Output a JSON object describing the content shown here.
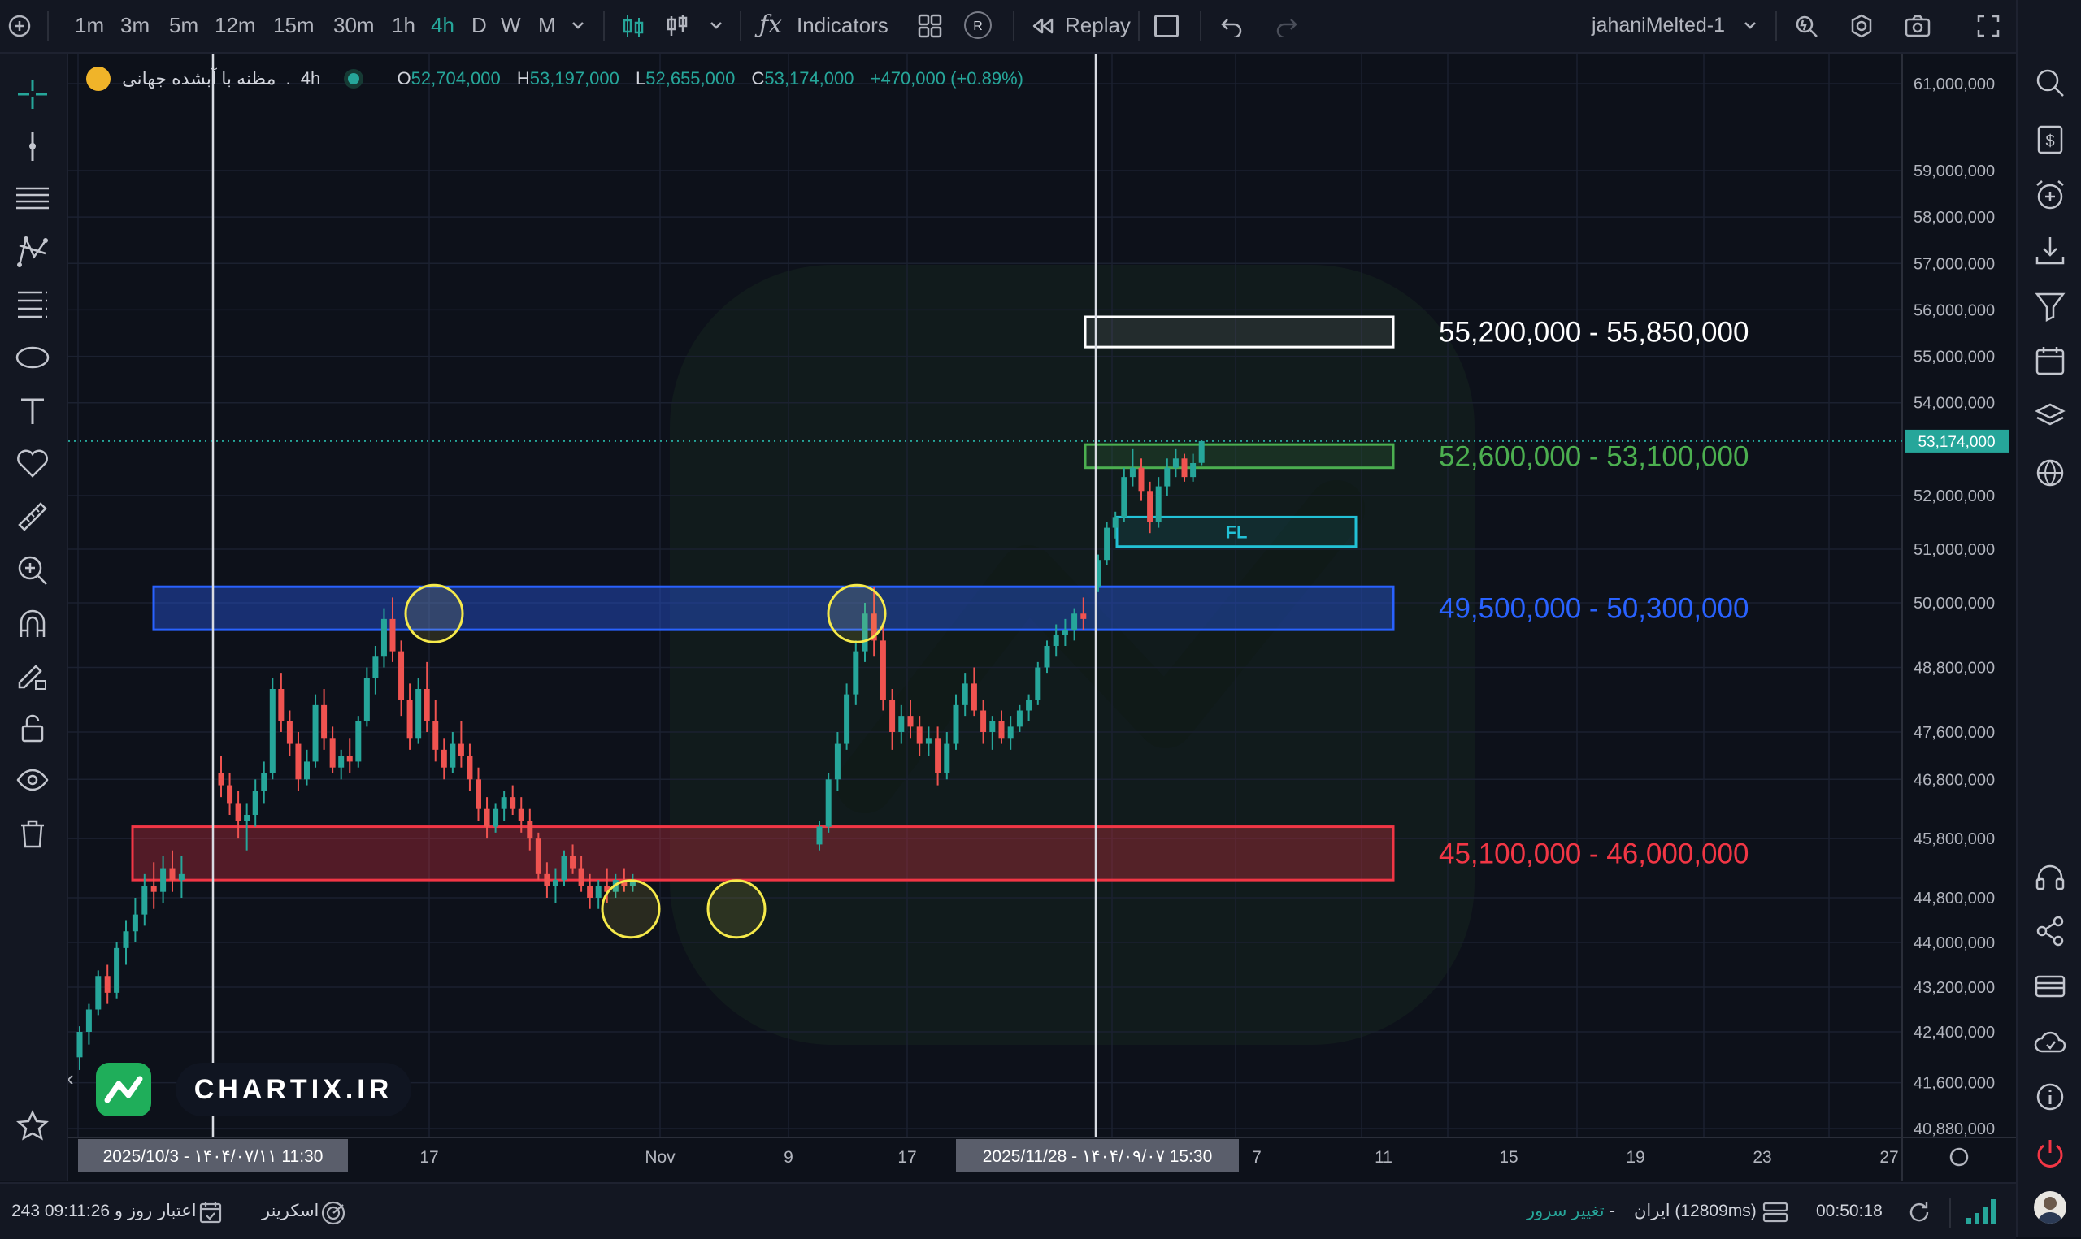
{
  "toolbar": {
    "timeframes": [
      "1m",
      "3m",
      "5m",
      "12m",
      "15m",
      "30m",
      "1h",
      "4h",
      "D",
      "W",
      "M"
    ],
    "active_timeframe": "4h",
    "indicators_label": "Indicators",
    "r_badge": "R",
    "replay_label": "Replay",
    "layout_name": "jahaniMelted-1"
  },
  "legend": {
    "symbol": "مظنه با آبشده جهانی",
    "separator": ".",
    "interval": "4h",
    "o_label": "O",
    "open": "52,704,000",
    "h_label": "H",
    "high": "53,197,000",
    "l_label": "L",
    "low": "52,655,000",
    "c_label": "C",
    "close": "53,174,000",
    "change": "+470,000 (+0.89%)"
  },
  "watermark": {
    "text": "CHARTIX.IR"
  },
  "statusbar": {
    "account_time": "243 روز و 09:11:26",
    "account_label": "اعتبار",
    "screener_label": "اسکرینر",
    "change_server": "تغییر سرور",
    "server_dash": "-",
    "server_name": "ایران (12809ms)",
    "clock": "00:50:18"
  },
  "colors": {
    "background": "#0d111a",
    "up": "#26a69a",
    "down": "#ef5350",
    "zone_white": "#ffffff",
    "zone_green": "#4caf50",
    "zone_blue": "#2962ff",
    "zone_red": "#f23645",
    "zone_teal": "#22c1d6",
    "highlight_circle": "#f5e94a"
  },
  "chart_data": {
    "type": "candlestick",
    "y_scale": "linear",
    "y_ticks": [
      "61,000,000",
      "59,000,000",
      "58,000,000",
      "57,000,000",
      "56,000,000",
      "55,000,000",
      "54,000,000",
      "52,000,000",
      "51,000,000",
      "50,000,000",
      "48,800,000",
      "47,600,000",
      "46,800,000",
      "45,800,000",
      "44,800,000",
      "44,000,000",
      "43,200,000",
      "42,400,000",
      "41,600,000",
      "40,880,000"
    ],
    "last_price_label": "53,174,000",
    "x_ticks": [
      "17",
      "Nov",
      "9",
      "17",
      "7",
      "11",
      "15",
      "19",
      "23",
      "27"
    ],
    "crosshair_labels": [
      "2025/10/3 - ۱۴۰۴/۰۷/۱۱   11:30",
      "2025/11/28 - ۱۴۰۴/۰۹/۰۷   15:30"
    ],
    "zones": [
      {
        "label": "55,200,000 - 55,850,000",
        "low": 55200000,
        "high": 55850000,
        "color": "white"
      },
      {
        "label": "52,600,000 - 53,100,000",
        "low": 52600000,
        "high": 53100000,
        "color": "green"
      },
      {
        "label": "FL",
        "low": 51050000,
        "high": 51600000,
        "color": "teal"
      },
      {
        "label": "49,500,000 - 50,300,000",
        "low": 49500000,
        "high": 50300000,
        "color": "blue"
      },
      {
        "label": "45,100,000 - 46,000,000",
        "low": 45100000,
        "high": 46000000,
        "color": "red"
      }
    ],
    "candles": [
      [
        42.0,
        42.5,
        41.8,
        42.4
      ],
      [
        42.4,
        42.9,
        42.2,
        42.8
      ],
      [
        42.8,
        43.5,
        42.7,
        43.4
      ],
      [
        43.4,
        43.6,
        42.9,
        43.1
      ],
      [
        43.1,
        44.0,
        43.0,
        43.9
      ],
      [
        43.9,
        44.4,
        43.6,
        44.2
      ],
      [
        44.2,
        44.8,
        44.0,
        44.5
      ],
      [
        44.5,
        45.2,
        44.3,
        45.0
      ],
      [
        45.0,
        45.4,
        44.6,
        44.9
      ],
      [
        44.9,
        45.5,
        44.7,
        45.3
      ],
      [
        45.3,
        45.6,
        44.9,
        45.1
      ],
      [
        45.1,
        45.5,
        44.8,
        45.2
      ],
      [
        46.9,
        47.2,
        46.5,
        46.7
      ],
      [
        46.7,
        46.9,
        46.2,
        46.4
      ],
      [
        46.4,
        46.6,
        45.8,
        46.1
      ],
      [
        46.1,
        46.4,
        45.6,
        46.2
      ],
      [
        46.2,
        46.8,
        46.0,
        46.6
      ],
      [
        46.6,
        47.1,
        46.4,
        46.9
      ],
      [
        46.9,
        48.6,
        46.8,
        48.4
      ],
      [
        48.4,
        48.7,
        47.6,
        47.8
      ],
      [
        47.8,
        48.0,
        47.2,
        47.4
      ],
      [
        47.4,
        47.6,
        46.6,
        46.8
      ],
      [
        46.8,
        47.3,
        46.7,
        47.1
      ],
      [
        47.1,
        48.3,
        47.0,
        48.1
      ],
      [
        48.1,
        48.4,
        47.3,
        47.5
      ],
      [
        47.5,
        47.7,
        46.9,
        47.0
      ],
      [
        47.0,
        47.3,
        46.8,
        47.2
      ],
      [
        47.2,
        47.5,
        46.9,
        47.1
      ],
      [
        47.1,
        47.9,
        47.0,
        47.8
      ],
      [
        47.8,
        48.8,
        47.7,
        48.6
      ],
      [
        48.6,
        49.2,
        48.3,
        49.0
      ],
      [
        49.0,
        49.9,
        48.8,
        49.7
      ],
      [
        49.7,
        50.1,
        48.9,
        49.1
      ],
      [
        49.1,
        49.3,
        47.9,
        48.2
      ],
      [
        48.2,
        48.5,
        47.3,
        47.5
      ],
      [
        47.5,
        48.6,
        47.4,
        48.4
      ],
      [
        48.4,
        48.9,
        47.6,
        47.8
      ],
      [
        47.8,
        48.2,
        47.1,
        47.3
      ],
      [
        47.3,
        47.5,
        46.8,
        47.0
      ],
      [
        47.0,
        47.6,
        46.9,
        47.4
      ],
      [
        47.4,
        47.8,
        47.0,
        47.2
      ],
      [
        47.2,
        47.4,
        46.6,
        46.8
      ],
      [
        46.8,
        47.0,
        46.1,
        46.3
      ],
      [
        46.3,
        46.5,
        45.8,
        46.0
      ],
      [
        46.0,
        46.4,
        45.9,
        46.3
      ],
      [
        46.3,
        46.6,
        46.1,
        46.5
      ],
      [
        46.5,
        46.7,
        46.2,
        46.3
      ],
      [
        46.3,
        46.5,
        45.9,
        46.1
      ],
      [
        46.1,
        46.3,
        45.6,
        45.8
      ],
      [
        45.8,
        45.9,
        45.1,
        45.2
      ],
      [
        45.2,
        45.4,
        44.8,
        45.0
      ],
      [
        45.0,
        45.3,
        44.7,
        45.1
      ],
      [
        45.1,
        45.6,
        45.0,
        45.5
      ],
      [
        45.5,
        45.7,
        45.2,
        45.3
      ],
      [
        45.3,
        45.5,
        44.9,
        45.0
      ],
      [
        45.0,
        45.2,
        44.6,
        44.8
      ],
      [
        44.8,
        45.1,
        44.6,
        45.0
      ],
      [
        45.0,
        45.3,
        44.7,
        44.9
      ],
      [
        44.9,
        45.2,
        44.8,
        45.1
      ],
      [
        45.1,
        45.3,
        44.9,
        45.0
      ],
      [
        45.0,
        45.2,
        44.9,
        45.1
      ],
      [
        45.7,
        46.1,
        45.6,
        46.0
      ],
      [
        46.0,
        46.9,
        45.9,
        46.8
      ],
      [
        46.8,
        47.6,
        46.6,
        47.4
      ],
      [
        47.4,
        48.5,
        47.3,
        48.3
      ],
      [
        48.3,
        49.3,
        48.1,
        49.1
      ],
      [
        49.1,
        50.0,
        48.9,
        49.8
      ],
      [
        49.8,
        50.3,
        49.0,
        49.3
      ],
      [
        49.3,
        49.6,
        48.0,
        48.2
      ],
      [
        48.2,
        48.4,
        47.3,
        47.6
      ],
      [
        47.6,
        48.1,
        47.4,
        47.9
      ],
      [
        47.9,
        48.2,
        47.5,
        47.7
      ],
      [
        47.7,
        47.9,
        47.2,
        47.4
      ],
      [
        47.4,
        47.7,
        47.2,
        47.5
      ],
      [
        47.5,
        47.7,
        46.7,
        46.9
      ],
      [
        46.9,
        47.6,
        46.8,
        47.4
      ],
      [
        47.4,
        48.3,
        47.3,
        48.1
      ],
      [
        48.1,
        48.7,
        47.9,
        48.5
      ],
      [
        48.5,
        48.8,
        47.9,
        48.0
      ],
      [
        48.0,
        48.2,
        47.4,
        47.6
      ],
      [
        47.6,
        47.9,
        47.3,
        47.8
      ],
      [
        47.8,
        48.0,
        47.4,
        47.5
      ],
      [
        47.5,
        47.9,
        47.3,
        47.7
      ],
      [
        47.7,
        48.1,
        47.6,
        48.0
      ],
      [
        48.0,
        48.3,
        47.8,
        48.2
      ],
      [
        48.2,
        48.9,
        48.1,
        48.8
      ],
      [
        48.8,
        49.3,
        48.7,
        49.2
      ],
      [
        49.2,
        49.6,
        49.0,
        49.4
      ],
      [
        49.4,
        49.7,
        49.2,
        49.5
      ],
      [
        49.5,
        49.9,
        49.3,
        49.8
      ],
      [
        49.8,
        50.1,
        49.5,
        49.7
      ],
      [
        50.3,
        50.9,
        50.2,
        50.8
      ],
      [
        50.8,
        51.5,
        50.7,
        51.4
      ],
      [
        51.4,
        51.7,
        51.2,
        51.6
      ],
      [
        51.6,
        52.6,
        51.5,
        52.4
      ],
      [
        52.4,
        53.0,
        52.2,
        52.6
      ],
      [
        52.6,
        52.8,
        51.9,
        52.1
      ],
      [
        52.1,
        52.3,
        51.3,
        51.5
      ],
      [
        51.5,
        52.4,
        51.4,
        52.2
      ],
      [
        52.2,
        52.8,
        52.0,
        52.6
      ],
      [
        52.6,
        53.0,
        52.4,
        52.8
      ],
      [
        52.8,
        52.9,
        52.3,
        52.4
      ],
      [
        52.4,
        52.9,
        52.3,
        52.7
      ],
      [
        52.704,
        53.197,
        52.655,
        53.174
      ]
    ]
  }
}
